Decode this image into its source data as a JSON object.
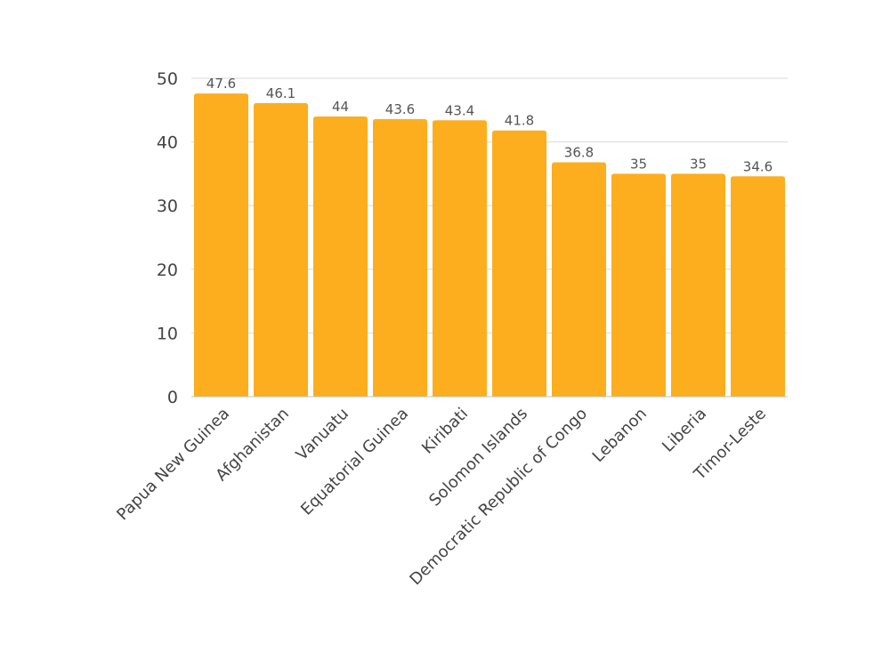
{
  "chart_data": {
    "type": "bar",
    "categories": [
      "Papua New Guinea",
      "Afghanistan",
      "Vanuatu",
      "Equatorial Guinea",
      "Kiribati",
      "Solomon Islands",
      "Democratic Republic of Congo",
      "Lebanon",
      "Liberia",
      "Timor-Leste"
    ],
    "values": [
      47.6,
      46.1,
      44,
      43.6,
      43.4,
      41.8,
      36.8,
      35,
      35,
      34.6
    ],
    "data_labels": [
      "47.6",
      "46.1",
      "44",
      "43.6",
      "43.4",
      "41.8",
      "36.8",
      "35",
      "35",
      "34.6"
    ],
    "yticks": [
      0,
      10,
      20,
      30,
      40,
      50
    ],
    "ylim": [
      0,
      50
    ],
    "grid": true,
    "bar_color": "#FCAE1E"
  }
}
